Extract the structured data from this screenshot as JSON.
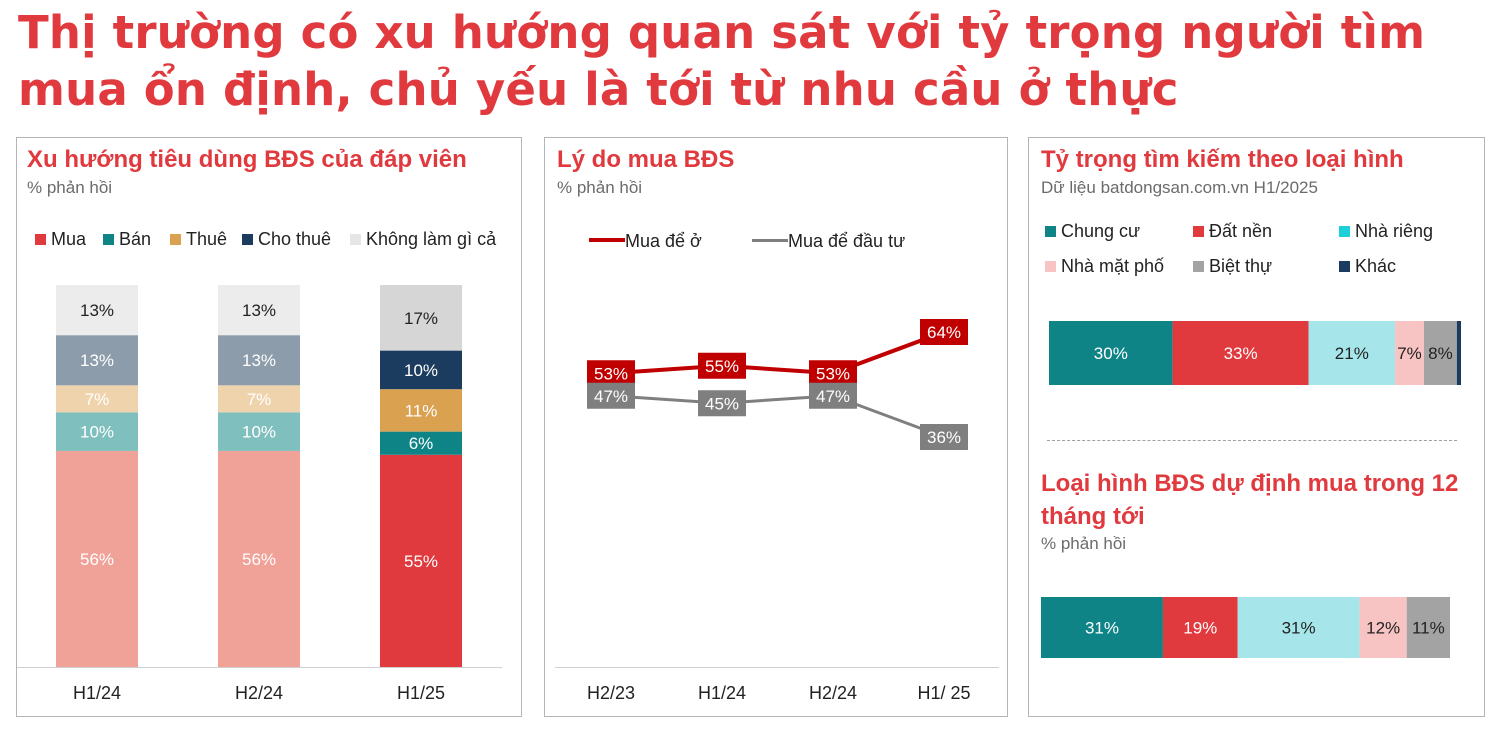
{
  "page_title": "Thị trường có xu hướng quan sát với tỷ trọng người tìm mua ổn định, chủ yếu là tới từ nhu cầu ở thực",
  "colors": {
    "accent_red": "#e0393e",
    "mua_light": "#f0a198",
    "mua_dark": "#e0393e",
    "ban_light": "#7fbfbe",
    "ban_dark": "#0e8487",
    "thue_light": "#efd3ad",
    "thue_dark": "#daa150",
    "chothue_light": "#8c9caa",
    "chothue_dark": "#1b3c5e",
    "khong_light": "#ececec",
    "khong_dark": "#d6d6d6",
    "line_red": "#c00000",
    "line_gray": "#7f7f7f",
    "chungcu": "#0e8487",
    "datnen": "#e0393e",
    "nharieng": "#a6e6ea",
    "matpho": "#f8c3c3",
    "bietthu": "#a3a3a3",
    "khac": "#1b3c5e",
    "legend_nharieng": "#1bd0d8"
  },
  "panel1": {
    "title": "Xu hướng tiêu dùng BĐS của đáp viên",
    "subtitle": "% phản hồi",
    "legend": [
      "Mua",
      "Bán",
      "Thuê",
      "Cho thuê",
      "Không làm gì cả"
    ]
  },
  "panel2": {
    "title": "Lý do mua BĐS",
    "subtitle": "% phản hồi",
    "legend": [
      "Mua để ở",
      "Mua để đầu tư"
    ]
  },
  "panel3": {
    "title": "Tỷ trọng tìm kiếm theo loại hình",
    "subtitle": "Dữ liệu batdongsan.com.vn H1/2025",
    "legend": [
      "Chung cư",
      "Đất nền",
      "Nhà riêng",
      "Nhà mặt phố",
      "Biệt thự",
      "Khác"
    ],
    "title2_line1": "Loại hình BĐS dự định mua trong 12",
    "title2_line2": "tháng tới",
    "subtitle2": "% phản hồi"
  },
  "chart_data": [
    {
      "type": "bar",
      "stacked": true,
      "title": "Xu hướng tiêu dùng BĐS của đáp viên",
      "subtitle": "% phản hồi",
      "categories": [
        "H1/24",
        "H2/24",
        "H1/25"
      ],
      "series": [
        {
          "name": "Mua",
          "values": [
            56,
            56,
            55
          ]
        },
        {
          "name": "Bán",
          "values": [
            10,
            10,
            6
          ]
        },
        {
          "name": "Thuê",
          "values": [
            7,
            7,
            11
          ]
        },
        {
          "name": "Cho thuê",
          "values": [
            13,
            13,
            10
          ]
        },
        {
          "name": "Không làm gì cả",
          "values": [
            13,
            13,
            17
          ]
        }
      ],
      "labels": [
        [
          "56%",
          "10%",
          "7%",
          "13%",
          "13%"
        ],
        [
          "56%",
          "10%",
          "7%",
          "13%",
          "13%"
        ],
        [
          "55%",
          "6%",
          "11%",
          "10%",
          "17%"
        ]
      ],
      "legend_position": "top",
      "grid": false
    },
    {
      "type": "line",
      "title": "Lý do mua BĐS",
      "subtitle": "% phản hồi",
      "categories": [
        "H2/23",
        "H1/24",
        "H2/24",
        "H1/ 25"
      ],
      "series": [
        {
          "name": "Mua để ở",
          "values": [
            53,
            55,
            53,
            64
          ],
          "labels": [
            "53%",
            "55%",
            "53%",
            "64%"
          ]
        },
        {
          "name": "Mua để đầu tư",
          "values": [
            47,
            45,
            47,
            36
          ],
          "labels": [
            "47%",
            "45%",
            "47%",
            "36%"
          ]
        }
      ],
      "legend_position": "top",
      "grid": false
    },
    {
      "type": "bar",
      "orientation": "horizontal",
      "stacked": true,
      "title": "Tỷ trọng tìm kiếm theo loại hình",
      "subtitle": "Dữ liệu batdongsan.com.vn H1/2025",
      "series": [
        {
          "name": "Chung cư",
          "value": 30,
          "label": "30%"
        },
        {
          "name": "Đất nền",
          "value": 33,
          "label": "33%"
        },
        {
          "name": "Nhà riêng",
          "value": 21,
          "label": "21%"
        },
        {
          "name": "Nhà mặt phố",
          "value": 7,
          "label": "7%"
        },
        {
          "name": "Biệt thự",
          "value": 8,
          "label": "8%"
        },
        {
          "name": "Khác",
          "value": 1,
          "label": ""
        }
      ],
      "legend_position": "top"
    },
    {
      "type": "bar",
      "orientation": "horizontal",
      "stacked": true,
      "title": "Loại hình BĐS dự định mua trong 12 tháng tới",
      "subtitle": "% phản hồi",
      "series": [
        {
          "name": "Chung cư",
          "value": 31,
          "label": "31%"
        },
        {
          "name": "Đất nền",
          "value": 19,
          "label": "19%"
        },
        {
          "name": "Nhà riêng",
          "value": 31,
          "label": "31%"
        },
        {
          "name": "Nhà mặt phố",
          "value": 12,
          "label": "12%"
        },
        {
          "name": "Biệt thự",
          "value": 11,
          "label": "11%"
        }
      ]
    }
  ]
}
